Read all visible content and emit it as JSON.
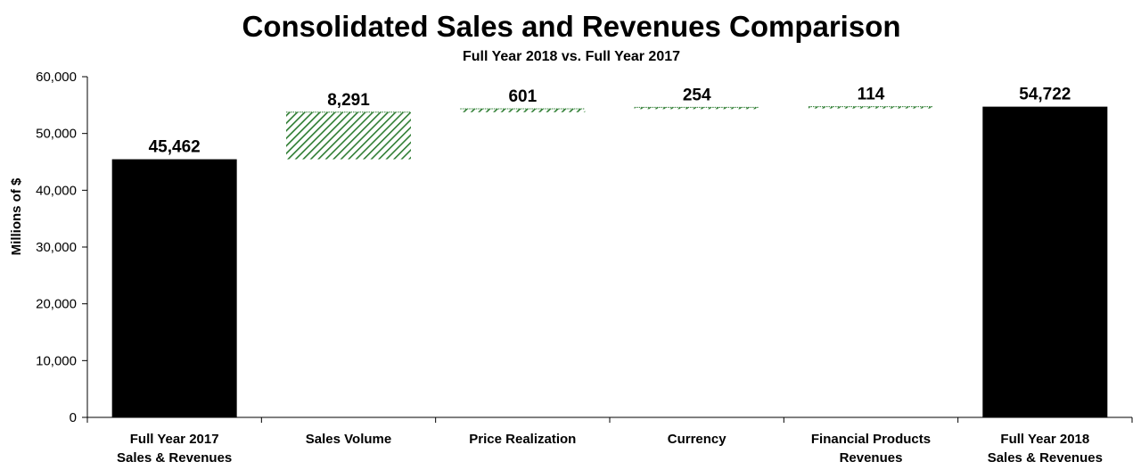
{
  "chart_data": {
    "type": "bar",
    "subtype": "waterfall",
    "title": "Consolidated Sales and Revenues Comparison",
    "subtitle": "Full Year 2018 vs. Full Year 2017",
    "ylabel": "Millions of $",
    "ylim": [
      0,
      60000
    ],
    "yticks": [
      "0",
      "10,000",
      "20,000",
      "30,000",
      "40,000",
      "50,000",
      "60,000"
    ],
    "ytick_values": [
      0,
      10000,
      20000,
      30000,
      40000,
      50000,
      60000
    ],
    "grid": false,
    "categories": [
      [
        "Full Year 2017",
        "Sales & Revenues"
      ],
      [
        "Sales Volume"
      ],
      [
        "Price Realization"
      ],
      [
        "Currency"
      ],
      [
        "Financial Products",
        "Revenues"
      ],
      [
        "Full Year 2018",
        "Sales & Revenues"
      ]
    ],
    "bars": [
      {
        "kind": "total",
        "start": 0,
        "end": 45462,
        "label": "45,462"
      },
      {
        "kind": "increase",
        "start": 45462,
        "end": 53753,
        "label": "8,291"
      },
      {
        "kind": "increase",
        "start": 53753,
        "end": 54354,
        "label": "601"
      },
      {
        "kind": "increase",
        "start": 54354,
        "end": 54608,
        "label": "254"
      },
      {
        "kind": "increase",
        "start": 54608,
        "end": 54722,
        "label": "114"
      },
      {
        "kind": "total",
        "start": 0,
        "end": 54722,
        "label": "54,722"
      }
    ],
    "colors": {
      "total": "#000000",
      "increase": "#2e7d32",
      "axis": "#000000"
    }
  }
}
